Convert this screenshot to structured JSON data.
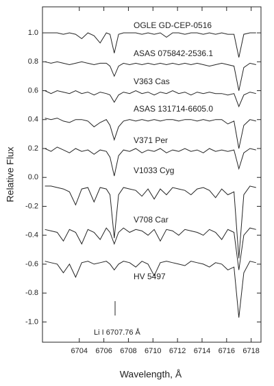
{
  "chart_data": {
    "type": "line",
    "x_label": "Wavelength, Å",
    "y_label": "Relative  Flux",
    "xlim": [
      6701.0,
      6718.8
    ],
    "ylim": [
      -1.14,
      1.18
    ],
    "xticks": [
      6704,
      6706,
      6708,
      6710,
      6712,
      6714,
      6716,
      6718
    ],
    "yticks": [
      {
        "value": 1,
        "label": "1.0"
      },
      0.8,
      0.6,
      0.4,
      0.2,
      {
        "value": 0,
        "label": "0.0"
      },
      -0.2,
      -0.4,
      -0.6,
      -0.8,
      {
        "value": -1,
        "label": "-1.0"
      }
    ],
    "annotation": "Li I  6707.76 Å",
    "x": [
      6701.2,
      6701.7,
      6702.2,
      6702.7,
      6703.2,
      6703.7,
      6704.2,
      6704.7,
      6705.2,
      6705.7,
      6706.2,
      6706.5,
      6706.85,
      6707.2,
      6707.6,
      6708.1,
      6708.6,
      6709.1,
      6709.6,
      6710.1,
      6710.6,
      6711.1,
      6711.6,
      6712.1,
      6712.6,
      6713.1,
      6713.6,
      6714.1,
      6714.6,
      6715.1,
      6715.6,
      6716.1,
      6716.6,
      6717.0,
      6717.4,
      6717.9,
      6718.4
    ],
    "series": [
      {
        "name": "OGLE GD-CEP-0516",
        "color": "#222222",
        "values": [
          1.0,
          1.0,
          1.0,
          0.99,
          1.0,
          0.99,
          0.96,
          1.0,
          0.98,
          0.93,
          1.0,
          0.99,
          0.86,
          0.99,
          1.0,
          1.0,
          1.0,
          0.99,
          1.0,
          0.99,
          1.0,
          0.97,
          1.0,
          1.0,
          0.99,
          1.0,
          1.0,
          0.99,
          1.0,
          0.99,
          1.0,
          0.99,
          0.99,
          0.83,
          0.99,
          1.0,
          1.0
        ]
      },
      {
        "name": "ASAS 075842-2536.1",
        "color": "#222222",
        "values": [
          0.8,
          0.79,
          0.8,
          0.79,
          0.78,
          0.79,
          0.8,
          0.79,
          0.78,
          0.79,
          0.79,
          0.77,
          0.7,
          0.77,
          0.79,
          0.78,
          0.79,
          0.78,
          0.79,
          0.78,
          0.79,
          0.78,
          0.79,
          0.78,
          0.79,
          0.78,
          0.79,
          0.78,
          0.77,
          0.78,
          0.79,
          0.78,
          0.77,
          0.6,
          0.76,
          0.79,
          0.78
        ]
      },
      {
        "name": "V363 Cas",
        "color": "#222222",
        "values": [
          0.6,
          0.58,
          0.6,
          0.59,
          0.58,
          0.6,
          0.58,
          0.59,
          0.57,
          0.59,
          0.58,
          0.57,
          0.52,
          0.57,
          0.59,
          0.58,
          0.6,
          0.58,
          0.59,
          0.57,
          0.59,
          0.58,
          0.6,
          0.58,
          0.59,
          0.57,
          0.59,
          0.58,
          0.59,
          0.58,
          0.58,
          0.57,
          0.58,
          0.49,
          0.57,
          0.59,
          0.58
        ]
      },
      {
        "name": "ASAS 131714-6605.0",
        "color": "#222222",
        "values": [
          0.41,
          0.4,
          0.41,
          0.39,
          0.38,
          0.4,
          0.4,
          0.39,
          0.35,
          0.38,
          0.4,
          0.36,
          0.26,
          0.35,
          0.39,
          0.4,
          0.39,
          0.4,
          0.39,
          0.4,
          0.39,
          0.4,
          0.4,
          0.39,
          0.4,
          0.4,
          0.39,
          0.4,
          0.39,
          0.4,
          0.4,
          0.37,
          0.39,
          0.2,
          0.36,
          0.4,
          0.39
        ]
      },
      {
        "name": "V371 Per",
        "color": "#222222",
        "values": [
          0.2,
          0.18,
          0.21,
          0.19,
          0.17,
          0.2,
          0.18,
          0.19,
          0.16,
          0.19,
          0.18,
          0.14,
          0.01,
          0.15,
          0.19,
          0.18,
          0.2,
          0.17,
          0.19,
          0.18,
          0.2,
          0.17,
          0.19,
          0.18,
          0.2,
          0.18,
          0.19,
          0.17,
          0.2,
          0.18,
          0.19,
          0.18,
          0.19,
          0.06,
          0.17,
          0.2,
          0.19
        ]
      },
      {
        "name": "V1033 Cyg",
        "color": "#222222",
        "values": [
          -0.06,
          -0.06,
          -0.07,
          -0.08,
          -0.1,
          -0.19,
          -0.08,
          -0.07,
          -0.17,
          -0.07,
          -0.08,
          -0.12,
          -0.42,
          -0.12,
          -0.07,
          -0.08,
          -0.09,
          -0.13,
          -0.08,
          -0.15,
          -0.08,
          -0.12,
          -0.07,
          -0.08,
          -0.09,
          -0.12,
          -0.08,
          -0.07,
          -0.09,
          -0.14,
          -0.08,
          -0.12,
          -0.1,
          -0.56,
          -0.12,
          -0.06,
          -0.07
        ]
      },
      {
        "name": "V708 Car",
        "color": "#222222",
        "values": [
          -0.36,
          -0.37,
          -0.38,
          -0.44,
          -0.36,
          -0.38,
          -0.46,
          -0.36,
          -0.38,
          -0.43,
          -0.35,
          -0.38,
          -0.46,
          -0.38,
          -0.35,
          -0.38,
          -0.36,
          -0.37,
          -0.4,
          -0.36,
          -0.44,
          -0.36,
          -0.37,
          -0.4,
          -0.36,
          -0.37,
          -0.38,
          -0.4,
          -0.36,
          -0.38,
          -0.43,
          -0.36,
          -0.38,
          -0.64,
          -0.4,
          -0.35,
          -0.36
        ]
      },
      {
        "name": "HV 5497",
        "color": "#222222",
        "values": [
          -0.58,
          -0.59,
          -0.6,
          -0.66,
          -0.6,
          -0.69,
          -0.59,
          -0.58,
          -0.6,
          -0.59,
          -0.58,
          -0.6,
          -0.64,
          -0.6,
          -0.58,
          -0.59,
          -0.62,
          -0.58,
          -0.6,
          -0.68,
          -0.59,
          -0.58,
          -0.59,
          -0.6,
          -0.61,
          -0.58,
          -0.59,
          -0.6,
          -0.62,
          -0.59,
          -0.6,
          -0.64,
          -0.62,
          -0.97,
          -0.66,
          -0.58,
          -0.59
        ]
      }
    ]
  }
}
